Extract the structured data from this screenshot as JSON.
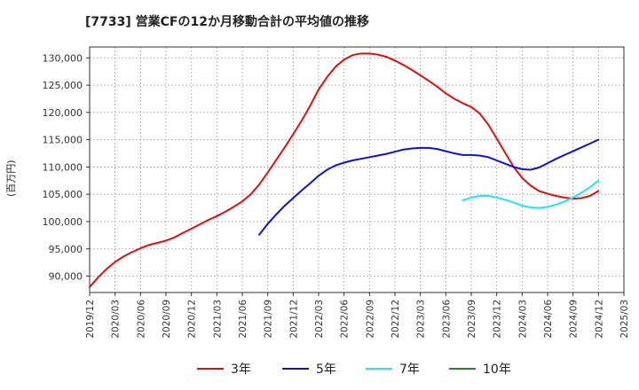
{
  "chart_data": {
    "type": "line",
    "title": "[7733]  営業CFの12か月移動合計の平均値の推移",
    "ylabel": "(百万円)",
    "xlabel": "",
    "ylim": [
      87000,
      132000
    ],
    "yticks": [
      90000,
      95000,
      100000,
      105000,
      110000,
      115000,
      120000,
      125000,
      130000
    ],
    "ytick_labels": [
      "90,000",
      "95,000",
      "100,000",
      "105,000",
      "110,000",
      "115,000",
      "120,000",
      "125,000",
      "130,000"
    ],
    "xticks": [
      "2019/12",
      "2020/03",
      "2020/06",
      "2020/09",
      "2020/12",
      "2021/03",
      "2021/06",
      "2021/09",
      "2021/12",
      "2022/03",
      "2022/06",
      "2022/09",
      "2022/12",
      "2023/03",
      "2023/06",
      "2023/09",
      "2023/12",
      "2024/03",
      "2024/06",
      "2024/09",
      "2024/12",
      "2025/03"
    ],
    "grid": true,
    "legend_position": "bottom",
    "series": [
      {
        "name": "3年",
        "color": "#dd1111",
        "points": [
          [
            "2019/12",
            88000
          ],
          [
            "2020/01",
            89800
          ],
          [
            "2020/02",
            91300
          ],
          [
            "2020/03",
            92600
          ],
          [
            "2020/04",
            93600
          ],
          [
            "2020/05",
            94400
          ],
          [
            "2020/06",
            95100
          ],
          [
            "2020/07",
            95700
          ],
          [
            "2020/08",
            96100
          ],
          [
            "2020/09",
            96500
          ],
          [
            "2020/10",
            97100
          ],
          [
            "2020/11",
            97900
          ],
          [
            "2020/12",
            98700
          ],
          [
            "2021/01",
            99500
          ],
          [
            "2021/02",
            100300
          ],
          [
            "2021/03",
            101000
          ],
          [
            "2021/04",
            101800
          ],
          [
            "2021/05",
            102700
          ],
          [
            "2021/06",
            103700
          ],
          [
            "2021/07",
            105000
          ],
          [
            "2021/08",
            106800
          ],
          [
            "2021/09",
            109000
          ],
          [
            "2021/10",
            111300
          ],
          [
            "2021/11",
            113600
          ],
          [
            "2021/12",
            116000
          ],
          [
            "2022/01",
            118500
          ],
          [
            "2022/02",
            121200
          ],
          [
            "2022/03",
            124200
          ],
          [
            "2022/04",
            126500
          ],
          [
            "2022/05",
            128400
          ],
          [
            "2022/06",
            129700
          ],
          [
            "2022/07",
            130500
          ],
          [
            "2022/08",
            130800
          ],
          [
            "2022/09",
            130800
          ],
          [
            "2022/10",
            130600
          ],
          [
            "2022/11",
            130200
          ],
          [
            "2022/12",
            129500
          ],
          [
            "2023/01",
            128700
          ],
          [
            "2023/02",
            127800
          ],
          [
            "2023/03",
            126800
          ],
          [
            "2023/04",
            125800
          ],
          [
            "2023/05",
            124700
          ],
          [
            "2023/06",
            123500
          ],
          [
            "2023/07",
            122500
          ],
          [
            "2023/08",
            121700
          ],
          [
            "2023/09",
            121000
          ],
          [
            "2023/10",
            119800
          ],
          [
            "2023/11",
            117800
          ],
          [
            "2023/12",
            115200
          ],
          [
            "2024/01",
            112600
          ],
          [
            "2024/02",
            110000
          ],
          [
            "2024/03",
            108000
          ],
          [
            "2024/04",
            106600
          ],
          [
            "2024/05",
            105600
          ],
          [
            "2024/06",
            105100
          ],
          [
            "2024/07",
            104700
          ],
          [
            "2024/08",
            104400
          ],
          [
            "2024/09",
            104200
          ],
          [
            "2024/10",
            104300
          ],
          [
            "2024/11",
            104700
          ],
          [
            "2024/12",
            105600
          ]
        ]
      },
      {
        "name": "5年",
        "color": "#1111cc",
        "points": [
          [
            "2021/08",
            97600
          ],
          [
            "2021/09",
            99600
          ],
          [
            "2021/10",
            101300
          ],
          [
            "2021/11",
            102900
          ],
          [
            "2021/12",
            104300
          ],
          [
            "2022/01",
            105700
          ],
          [
            "2022/02",
            107000
          ],
          [
            "2022/03",
            108400
          ],
          [
            "2022/04",
            109500
          ],
          [
            "2022/05",
            110300
          ],
          [
            "2022/06",
            110800
          ],
          [
            "2022/07",
            111200
          ],
          [
            "2022/08",
            111500
          ],
          [
            "2022/09",
            111800
          ],
          [
            "2022/10",
            112100
          ],
          [
            "2022/11",
            112400
          ],
          [
            "2022/12",
            112800
          ],
          [
            "2023/01",
            113200
          ],
          [
            "2023/02",
            113400
          ],
          [
            "2023/03",
            113500
          ],
          [
            "2023/04",
            113500
          ],
          [
            "2023/05",
            113300
          ],
          [
            "2023/06",
            112900
          ],
          [
            "2023/07",
            112500
          ],
          [
            "2023/08",
            112200
          ],
          [
            "2023/09",
            112200
          ],
          [
            "2023/10",
            112100
          ],
          [
            "2023/11",
            111800
          ],
          [
            "2023/12",
            111200
          ],
          [
            "2024/01",
            110600
          ],
          [
            "2024/02",
            110000
          ],
          [
            "2024/03",
            109600
          ],
          [
            "2024/04",
            109500
          ],
          [
            "2024/05",
            109900
          ],
          [
            "2024/06",
            110700
          ],
          [
            "2024/07",
            111500
          ],
          [
            "2024/08",
            112200
          ],
          [
            "2024/09",
            112900
          ],
          [
            "2024/10",
            113600
          ],
          [
            "2024/11",
            114300
          ],
          [
            "2024/12",
            115000
          ]
        ]
      },
      {
        "name": "7年",
        "color": "#22e5ee",
        "points": [
          [
            "2023/08",
            103900
          ],
          [
            "2023/09",
            104400
          ],
          [
            "2023/10",
            104700
          ],
          [
            "2023/11",
            104700
          ],
          [
            "2023/12",
            104400
          ],
          [
            "2024/01",
            104000
          ],
          [
            "2024/02",
            103500
          ],
          [
            "2024/03",
            102900
          ],
          [
            "2024/04",
            102600
          ],
          [
            "2024/05",
            102500
          ],
          [
            "2024/06",
            102700
          ],
          [
            "2024/07",
            103100
          ],
          [
            "2024/08",
            103700
          ],
          [
            "2024/09",
            104400
          ],
          [
            "2024/10",
            105300
          ],
          [
            "2024/11",
            106300
          ],
          [
            "2024/12",
            107500
          ]
        ]
      },
      {
        "name": "10年",
        "color": "#228822",
        "points": []
      }
    ]
  }
}
